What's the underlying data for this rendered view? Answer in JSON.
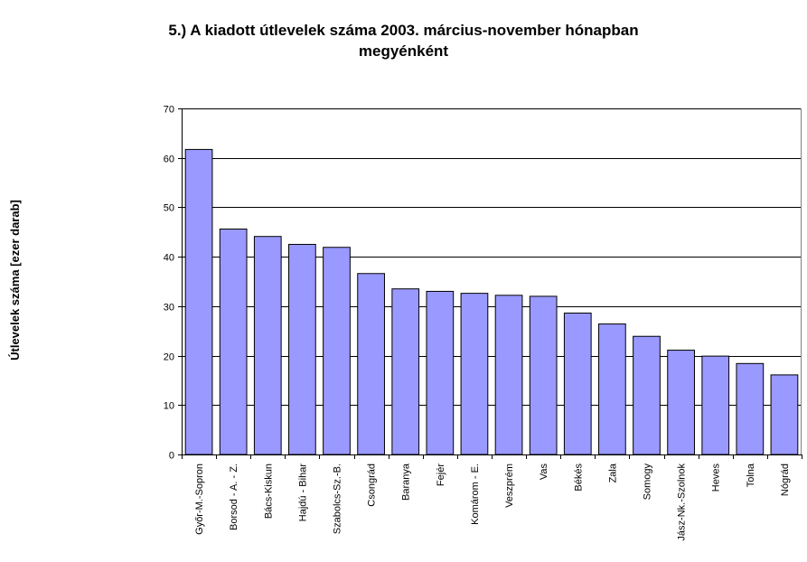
{
  "chart_data": {
    "type": "bar",
    "title_line1": "5.) A kiadott útlevelek száma 2003. március-november hónapban",
    "title_line2": "megyénként",
    "ylabel": "Útlevelek száma [ezer darab]",
    "ylim": [
      0,
      70
    ],
    "yticks": [
      "0",
      "10",
      "20",
      "30",
      "40",
      "50",
      "60",
      "70"
    ],
    "grid": true,
    "bar_color": "#9999ff",
    "categories": [
      "Győr-M.-Sopron",
      "Borsod - A. - Z.",
      "Bács-Kiskun",
      "Hajdú - Bihar",
      "Szabolcs-Sz.-B.",
      "Csongrád",
      "Baranya",
      "Fejér",
      "Komárom - E.",
      "Veszprém",
      "Vas",
      "Békés",
      "Zala",
      "Somogy",
      "Jász-Nk.-Szolnok",
      "Heves",
      "Tolna",
      "Nógrád"
    ],
    "values": [
      61.7,
      45.6,
      44.1,
      42.5,
      41.9,
      36.6,
      33.5,
      33.0,
      32.6,
      32.2,
      32.0,
      28.6,
      26.4,
      23.9,
      21.1,
      19.9,
      18.4,
      16.1
    ]
  }
}
